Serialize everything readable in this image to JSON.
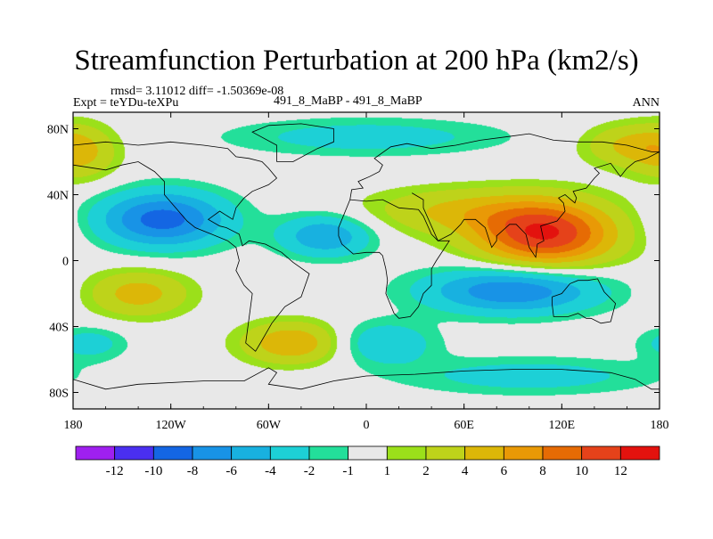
{
  "title": "Streamfunction Perturbation at 200 hPa (km2/s)",
  "stats": {
    "rmsd_text": "rmsd= 3.11012 diff= -1.50369e-08"
  },
  "experiment": {
    "expt_label": "Expt = teYDu-teXPu",
    "runs_label": "491_8_MaBP - 491_8_MaBP",
    "period": "ANN"
  },
  "map": {
    "projection": "cylindrical-equidistant",
    "lon_range": [
      -180,
      180
    ],
    "lat_range": [
      -90,
      90
    ],
    "x_ticks": [
      {
        "lon": -180,
        "label": "180"
      },
      {
        "lon": -120,
        "label": "120W"
      },
      {
        "lon": -60,
        "label": "60W"
      },
      {
        "lon": 0,
        "label": "0"
      },
      {
        "lon": 60,
        "label": "60E"
      },
      {
        "lon": 120,
        "label": "120E"
      },
      {
        "lon": 180,
        "label": "180"
      }
    ],
    "y_ticks": [
      {
        "lat": 80,
        "label": "80N"
      },
      {
        "lat": 40,
        "label": "40N"
      },
      {
        "lat": 0,
        "label": "0"
      },
      {
        "lat": -40,
        "label": "40S"
      },
      {
        "lat": -80,
        "label": "80S"
      }
    ]
  },
  "field_features": [
    {
      "name": "anticyclone-asia",
      "lon": 110,
      "lat": 16,
      "peak": 12,
      "sigma_lon": 30,
      "sigma_lat": 14
    },
    {
      "name": "ridge-north-africa",
      "lon": 55,
      "lat": 30,
      "peak": 4,
      "sigma_lon": 40,
      "sigma_lat": 10
    },
    {
      "name": "low-north-pacific",
      "lon": -125,
      "lat": 25,
      "peak": -9,
      "sigma_lon": 28,
      "sigma_lat": 12
    },
    {
      "name": "low-mid-atlantic",
      "lon": -25,
      "lat": 15,
      "peak": -6,
      "sigma_lon": 20,
      "sigma_lat": 9
    },
    {
      "name": "low-indian-ocean",
      "lon": 90,
      "lat": -18,
      "peak": -8,
      "sigma_lon": 38,
      "sigma_lat": 10
    },
    {
      "name": "high-south-pacific",
      "lon": -140,
      "lat": -20,
      "peak": 5,
      "sigma_lon": 22,
      "sigma_lat": 10
    },
    {
      "name": "high-south-america",
      "lon": -45,
      "lat": -50,
      "peak": 6,
      "sigma_lon": 22,
      "sigma_lat": 9
    },
    {
      "name": "high-north-pacific",
      "lon": -175,
      "lat": 65,
      "peak": 4,
      "sigma_lon": 16,
      "sigma_lat": 12
    },
    {
      "name": "high-east-asia-polar",
      "lon": 160,
      "lat": 70,
      "peak": 4,
      "sigma_lon": 20,
      "sigma_lat": 9
    },
    {
      "name": "low-arctic",
      "lon": 0,
      "lat": 75,
      "peak": -3,
      "sigma_lon": 60,
      "sigma_lat": 8
    },
    {
      "name": "low-south-atlantic",
      "lon": 10,
      "lat": -50,
      "peak": -4,
      "sigma_lon": 22,
      "sigma_lat": 9
    },
    {
      "name": "low-southeast-pacific",
      "lon": -170,
      "lat": -50,
      "peak": -3,
      "sigma_lon": 16,
      "sigma_lat": 7
    },
    {
      "name": "low-southern-ocean",
      "lon": 100,
      "lat": -70,
      "peak": -3,
      "sigma_lon": 55,
      "sigma_lat": 8
    }
  ],
  "colorbar": {
    "colors": [
      "#9f20ef",
      "#4a2ff0",
      "#1466e3",
      "#1893e6",
      "#18b1e0",
      "#1dd0d6",
      "#23df9a",
      "#e8e8e8",
      "#9be01a",
      "#bed31a",
      "#dcb708",
      "#e99906",
      "#e66b04",
      "#e5421a",
      "#e3120e"
    ],
    "levels": [
      -12,
      -10,
      -8,
      -6,
      -4,
      -2,
      -1,
      1,
      2,
      4,
      6,
      8,
      10,
      12
    ],
    "labels": [
      "-12",
      "-10",
      "-8",
      "-6",
      "-4",
      "-2",
      "-1",
      "1",
      "2",
      "4",
      "6",
      "8",
      "10",
      "12"
    ]
  },
  "coastlines": [
    [
      [
        -180,
        58
      ],
      [
        -160,
        55
      ],
      [
        -150,
        58
      ],
      [
        -140,
        60
      ],
      [
        -130,
        54
      ],
      [
        -124,
        48
      ],
      [
        -124,
        40
      ],
      [
        -117,
        32
      ],
      [
        -110,
        24
      ],
      [
        -105,
        20
      ],
      [
        -95,
        16
      ],
      [
        -85,
        12
      ],
      [
        -80,
        8
      ],
      [
        -78,
        0
      ],
      [
        -80,
        -6
      ],
      [
        -75,
        -15
      ],
      [
        -70,
        -20
      ],
      [
        -72,
        -35
      ],
      [
        -74,
        -50
      ],
      [
        -68,
        -55
      ],
      [
        -65,
        -50
      ],
      [
        -58,
        -38
      ],
      [
        -50,
        -28
      ],
      [
        -40,
        -22
      ],
      [
        -35,
        -8
      ],
      [
        -45,
        -1
      ],
      [
        -52,
        5
      ],
      [
        -62,
        10
      ],
      [
        -72,
        12
      ],
      [
        -76,
        9
      ],
      [
        -78,
        16
      ],
      [
        -86,
        20
      ],
      [
        -90,
        21
      ],
      [
        -97,
        25
      ],
      [
        -90,
        30
      ],
      [
        -82,
        25
      ],
      [
        -80,
        32
      ],
      [
        -75,
        38
      ],
      [
        -70,
        42
      ],
      [
        -60,
        46
      ],
      [
        -55,
        50
      ],
      [
        -60,
        56
      ],
      [
        -64,
        60
      ],
      [
        -72,
        62
      ],
      [
        -80,
        63
      ],
      [
        -85,
        68
      ],
      [
        -100,
        70
      ],
      [
        -120,
        72
      ],
      [
        -140,
        70
      ],
      [
        -160,
        72
      ],
      [
        -180,
        70
      ]
    ],
    [
      [
        -10,
        37
      ],
      [
        -17,
        20
      ],
      [
        -17,
        15
      ],
      [
        -15,
        10
      ],
      [
        -8,
        4
      ],
      [
        0,
        5
      ],
      [
        8,
        5
      ],
      [
        10,
        3
      ],
      [
        12,
        -5
      ],
      [
        13,
        -12
      ],
      [
        12,
        -20
      ],
      [
        17,
        -32
      ],
      [
        20,
        -35
      ],
      [
        27,
        -34
      ],
      [
        32,
        -28
      ],
      [
        35,
        -20
      ],
      [
        40,
        -15
      ],
      [
        40,
        -5
      ],
      [
        43,
        0
      ],
      [
        51,
        12
      ],
      [
        44,
        12
      ],
      [
        40,
        16
      ],
      [
        35,
        27
      ],
      [
        32,
        31
      ],
      [
        20,
        32
      ],
      [
        10,
        37
      ],
      [
        0,
        36
      ],
      [
        -10,
        37
      ]
    ],
    [
      [
        -10,
        37
      ],
      [
        -9,
        43
      ],
      [
        -2,
        44
      ],
      [
        -5,
        48
      ],
      [
        2,
        51
      ],
      [
        8,
        54
      ],
      [
        10,
        58
      ],
      [
        5,
        62
      ],
      [
        15,
        69
      ],
      [
        25,
        71
      ],
      [
        40,
        68
      ],
      [
        55,
        70
      ],
      [
        70,
        73
      ],
      [
        85,
        75
      ],
      [
        100,
        77
      ],
      [
        115,
        73
      ],
      [
        130,
        72
      ],
      [
        145,
        72
      ],
      [
        160,
        70
      ],
      [
        175,
        66
      ],
      [
        180,
        66
      ]
    ],
    [
      [
        28,
        41
      ],
      [
        35,
        37
      ],
      [
        35,
        32
      ],
      [
        44,
        12
      ],
      [
        52,
        16
      ],
      [
        58,
        22
      ],
      [
        60,
        25
      ],
      [
        67,
        25
      ],
      [
        73,
        20
      ],
      [
        77,
        8
      ],
      [
        80,
        12
      ],
      [
        80,
        15
      ],
      [
        88,
        22
      ],
      [
        92,
        22
      ],
      [
        98,
        16
      ],
      [
        100,
        8
      ],
      [
        104,
        2
      ],
      [
        105,
        10
      ],
      [
        109,
        12
      ],
      [
        107,
        21
      ],
      [
        117,
        24
      ],
      [
        122,
        30
      ],
      [
        121,
        35
      ],
      [
        118,
        38
      ],
      [
        122,
        40
      ],
      [
        128,
        35
      ],
      [
        129,
        38
      ],
      [
        127,
        42
      ],
      [
        135,
        44
      ],
      [
        140,
        50
      ],
      [
        143,
        53
      ],
      [
        140,
        56
      ],
      [
        150,
        59
      ],
      [
        156,
        51
      ],
      [
        160,
        56
      ],
      [
        165,
        60
      ],
      [
        172,
        62
      ],
      [
        180,
        66
      ]
    ],
    [
      [
        114,
        -22
      ],
      [
        120,
        -20
      ],
      [
        125,
        -14
      ],
      [
        130,
        -12
      ],
      [
        136,
        -12
      ],
      [
        142,
        -11
      ],
      [
        146,
        -19
      ],
      [
        153,
        -26
      ],
      [
        150,
        -37
      ],
      [
        144,
        -38
      ],
      [
        138,
        -35
      ],
      [
        135,
        -35
      ],
      [
        130,
        -32
      ],
      [
        124,
        -34
      ],
      [
        115,
        -34
      ],
      [
        114,
        -26
      ],
      [
        114,
        -22
      ]
    ],
    [
      [
        -55,
        60
      ],
      [
        -45,
        60
      ],
      [
        -30,
        68
      ],
      [
        -20,
        72
      ],
      [
        -20,
        80
      ],
      [
        -40,
        83
      ],
      [
        -60,
        82
      ],
      [
        -70,
        78
      ],
      [
        -55,
        70
      ],
      [
        -55,
        60
      ]
    ],
    [
      [
        -180,
        -72
      ],
      [
        -160,
        -78
      ],
      [
        -140,
        -75
      ],
      [
        -100,
        -73
      ],
      [
        -75,
        -73
      ],
      [
        -60,
        -65
      ],
      [
        -55,
        -68
      ],
      [
        -60,
        -75
      ],
      [
        -40,
        -78
      ],
      [
        -20,
        -73
      ],
      [
        0,
        -70
      ],
      [
        30,
        -69
      ],
      [
        60,
        -67
      ],
      [
        90,
        -66
      ],
      [
        120,
        -66
      ],
      [
        150,
        -68
      ],
      [
        165,
        -72
      ],
      [
        175,
        -78
      ],
      [
        180,
        -78
      ]
    ]
  ]
}
